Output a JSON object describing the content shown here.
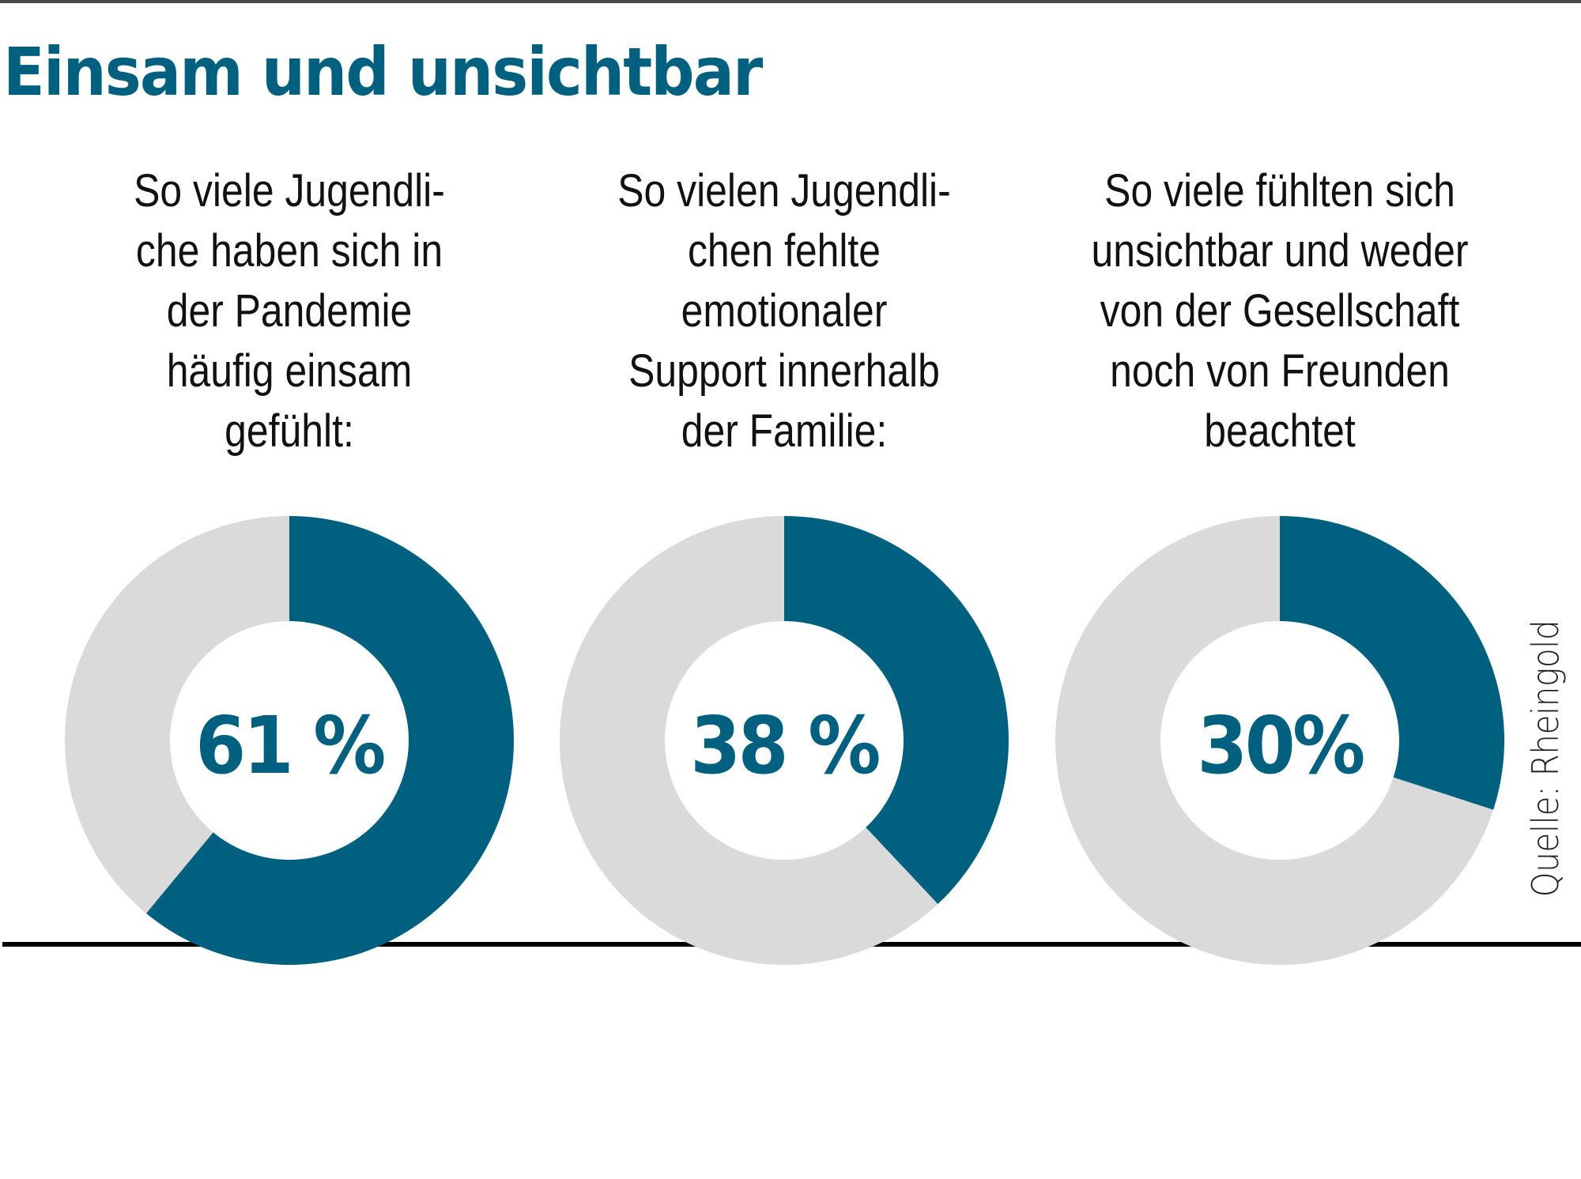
{
  "title": "Einsam und unsichtbar",
  "source": "Quelle: Rheingold",
  "colors": {
    "accent": "#006080",
    "remainder": "#dadada",
    "baseline": "#000000",
    "text": "#111111"
  },
  "panels": [
    {
      "question_lines": [
        "So viele Jugendli-",
        "che haben sich in",
        "der Pandemie",
        "häufig einsam",
        "gefühlt:"
      ],
      "value_label": "61 %"
    },
    {
      "question_lines": [
        "So vielen Jugendli-",
        "chen fehlte",
        "emotionaler",
        "Support innerhalb",
        "der Familie:"
      ],
      "value_label": "38 %"
    },
    {
      "question_lines": [
        "So viele fühlten sich",
        "unsichtbar und weder",
        "von der Gesellschaft",
        "noch von Freunden",
        "beachtet"
      ],
      "value_label": "30%"
    }
  ],
  "chart_data": {
    "type": "pie",
    "subtype": "donut",
    "title": "Einsam und unsichtbar",
    "unit": "%",
    "series": [
      {
        "name": "So viele Jugendliche haben sich in der Pandemie häufig einsam gefühlt",
        "value": 61,
        "remainder": 39
      },
      {
        "name": "So vielen Jugendlichen fehlte emotionaler Support innerhalb der Familie",
        "value": 38,
        "remainder": 62
      },
      {
        "name": "So viele fühlten sich unsichtbar und weder von der Gesellschaft noch von Freunden beachtet",
        "value": 30,
        "remainder": 70
      }
    ],
    "start_angle": "12 o'clock",
    "direction": "clockwise",
    "legend": "none",
    "source": "Quelle: Rheingold"
  }
}
